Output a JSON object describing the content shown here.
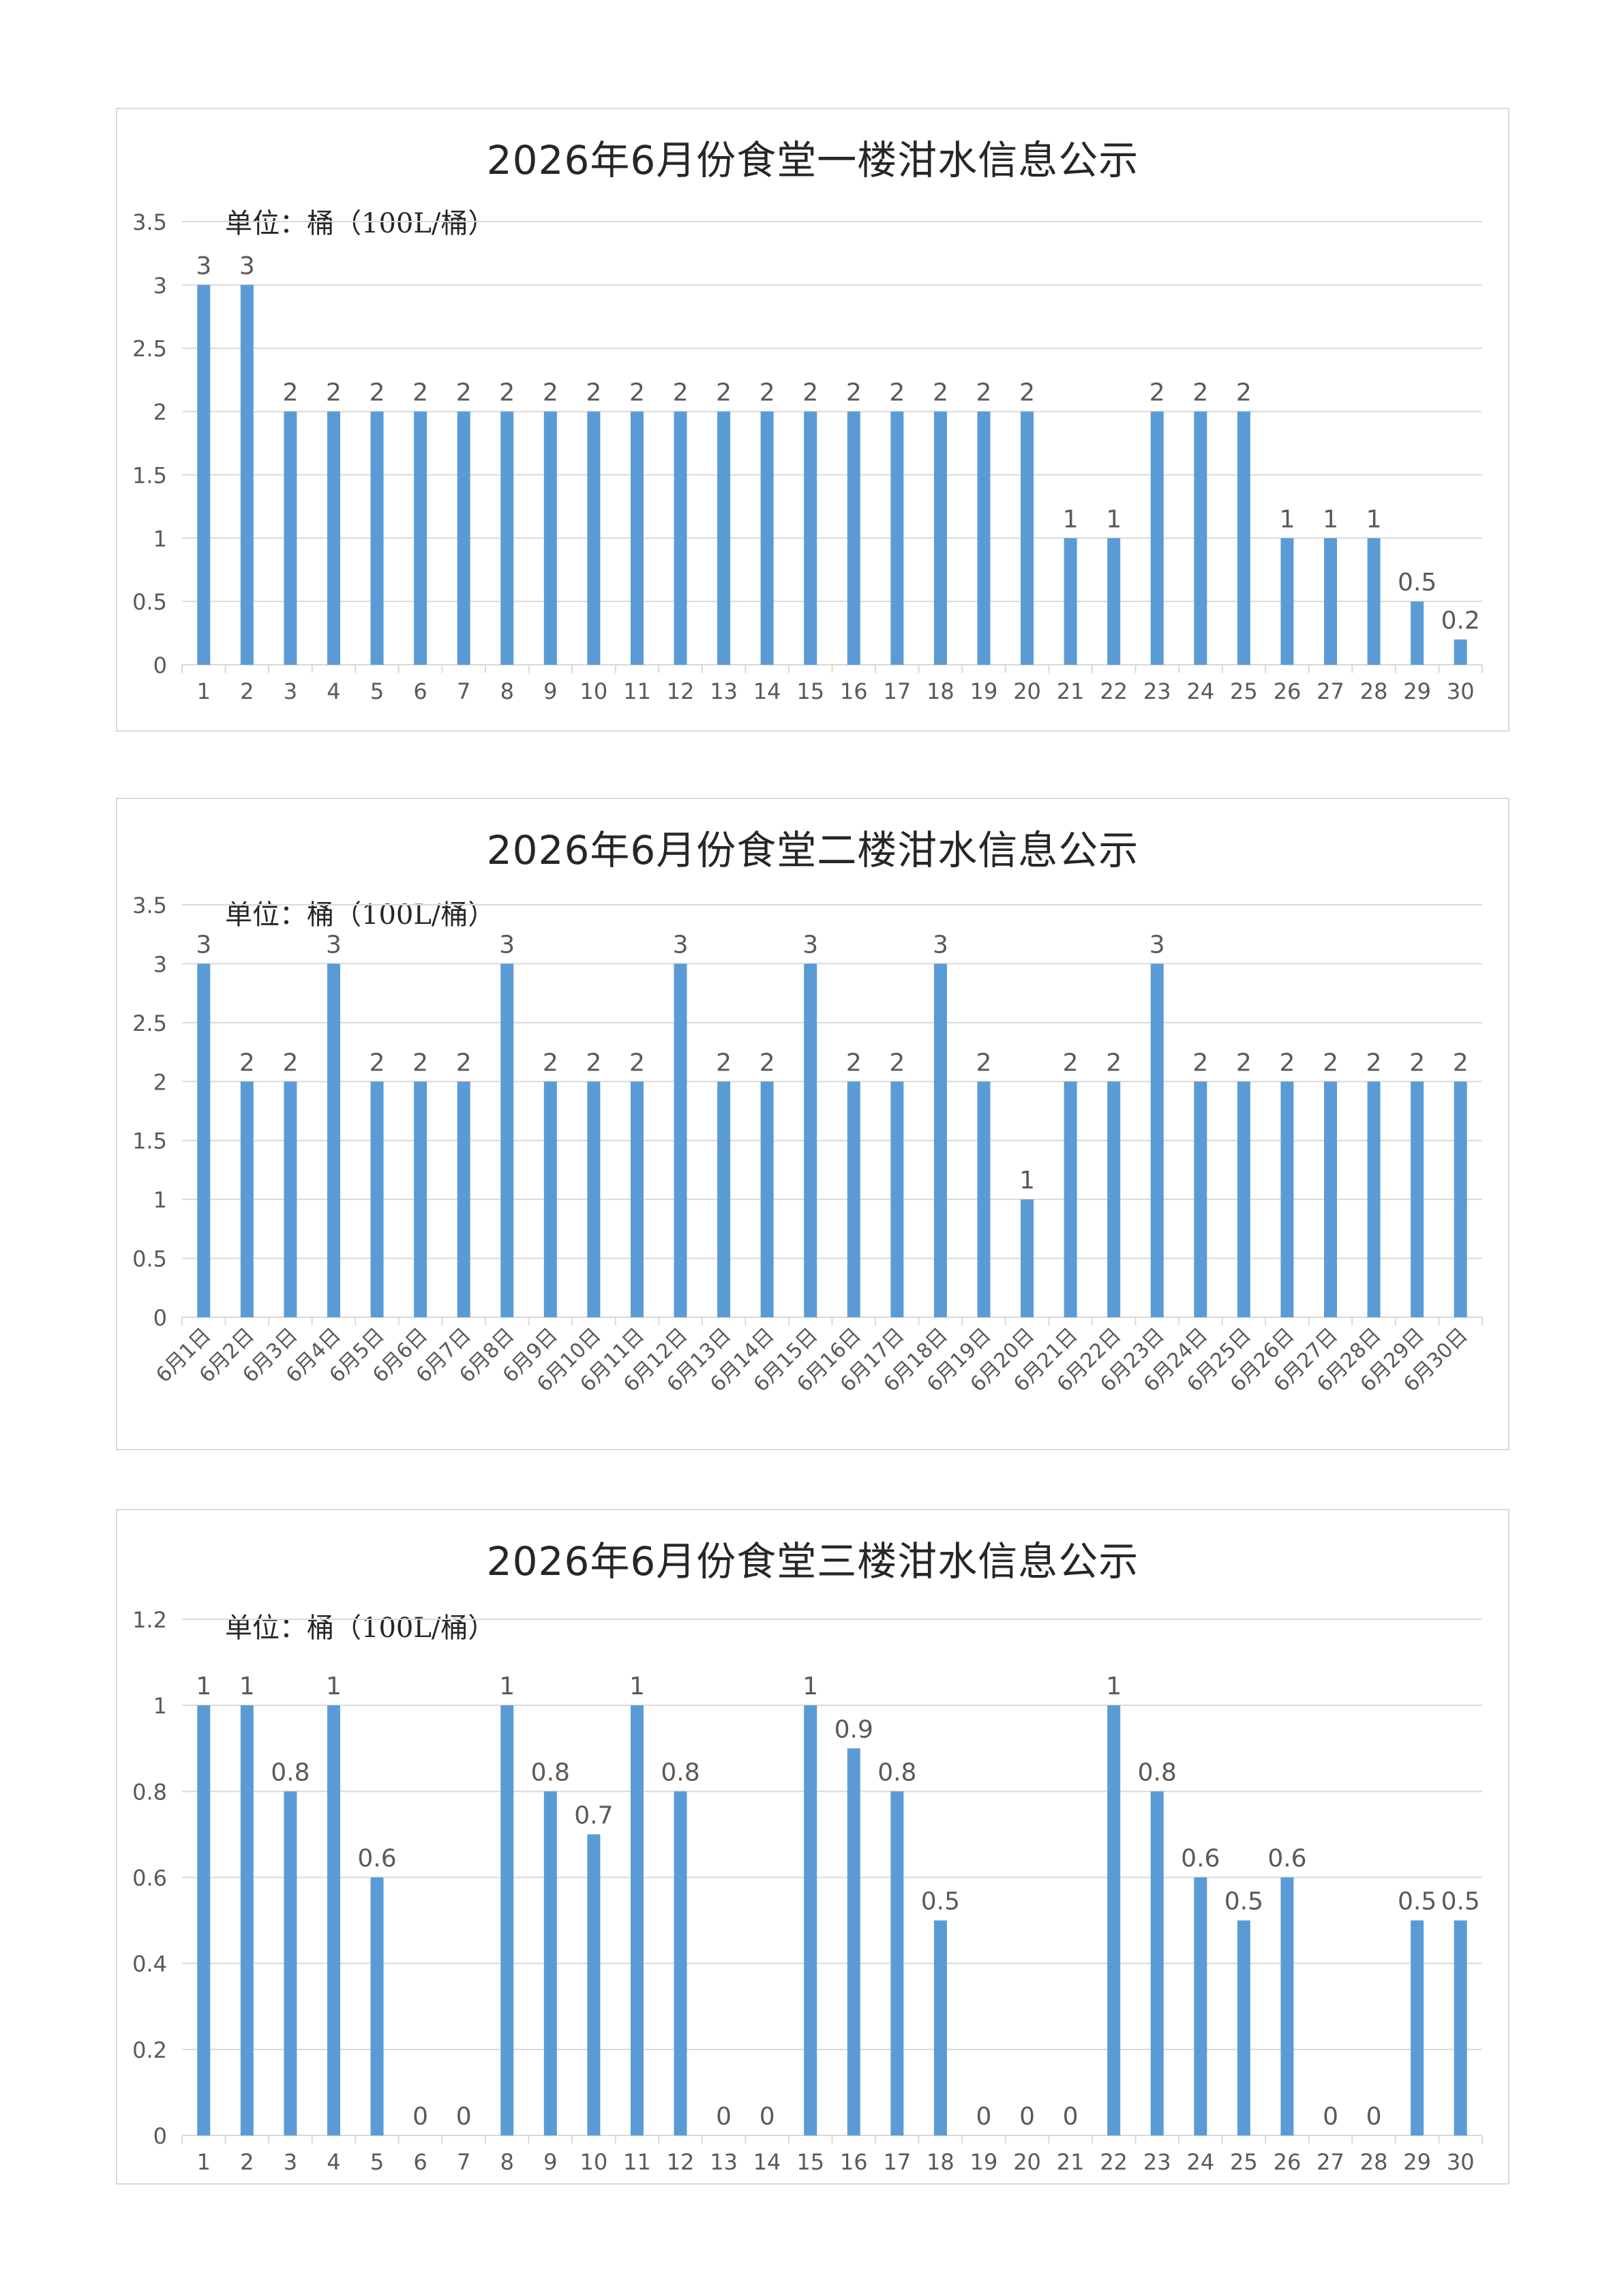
{
  "charts": [
    {
      "title": "2026年6月份食堂一楼泔水信息公示",
      "unit_label": "单位：桶（100L/桶）",
      "chart_data": {
        "type": "bar",
        "categories": [
          "1",
          "2",
          "3",
          "4",
          "5",
          "6",
          "7",
          "8",
          "9",
          "10",
          "11",
          "12",
          "13",
          "14",
          "15",
          "16",
          "17",
          "18",
          "19",
          "20",
          "21",
          "22",
          "23",
          "24",
          "25",
          "26",
          "27",
          "28",
          "29",
          "30"
        ],
        "values": [
          3,
          3,
          2,
          2,
          2,
          2,
          2,
          2,
          2,
          2,
          2,
          2,
          2,
          2,
          2,
          2,
          2,
          2,
          2,
          2,
          1,
          1,
          2,
          2,
          2,
          1,
          1,
          1,
          0.5,
          0.2
        ],
        "ylim": [
          0,
          3.5
        ],
        "yticks": [
          "0",
          "0.5",
          "1",
          "1.5",
          "2",
          "2.5",
          "3",
          "3.5"
        ],
        "grid": true,
        "bar_color": "#5b9bd5"
      }
    },
    {
      "title": "2026年6月份食堂二楼泔水信息公示",
      "unit_label": "单位：桶（100L/桶）",
      "chart_data": {
        "type": "bar",
        "categories": [
          "6月1日",
          "6月2日",
          "6月3日",
          "6月4日",
          "6月5日",
          "6月6日",
          "6月7日",
          "6月8日",
          "6月9日",
          "6月10日",
          "6月11日",
          "6月12日",
          "6月13日",
          "6月14日",
          "6月15日",
          "6月16日",
          "6月17日",
          "6月18日",
          "6月19日",
          "6月20日",
          "6月21日",
          "6月22日",
          "6月23日",
          "6月24日",
          "6月25日",
          "6月26日",
          "6月27日",
          "6月28日",
          "6月29日",
          "6月30日"
        ],
        "values": [
          3,
          2,
          2,
          3,
          2,
          2,
          2,
          3,
          2,
          2,
          2,
          3,
          2,
          2,
          3,
          2,
          2,
          3,
          2,
          1,
          2,
          2,
          3,
          2,
          2,
          2,
          2,
          2,
          2,
          2
        ],
        "ylim": [
          0,
          3.5
        ],
        "yticks": [
          "0",
          "0.5",
          "1",
          "1.5",
          "2",
          "2.5",
          "3",
          "3.5"
        ],
        "grid": true,
        "bar_color": "#5b9bd5"
      }
    },
    {
      "title": "2026年6月份食堂三楼泔水信息公示",
      "unit_label": "单位：桶（100L/桶）",
      "chart_data": {
        "type": "bar",
        "categories": [
          "1",
          "2",
          "3",
          "4",
          "5",
          "6",
          "7",
          "8",
          "9",
          "10",
          "11",
          "12",
          "13",
          "14",
          "15",
          "16",
          "17",
          "18",
          "19",
          "20",
          "21",
          "22",
          "23",
          "24",
          "25",
          "26",
          "27",
          "28",
          "29",
          "30"
        ],
        "values": [
          1,
          1,
          0.8,
          1,
          0.6,
          0,
          0,
          1,
          0.8,
          0.7,
          1,
          0.8,
          0,
          0,
          1,
          0.9,
          0.8,
          0.5,
          0,
          0,
          0,
          1,
          0.8,
          0.6,
          0.5,
          0.6,
          0,
          0,
          0.5,
          0.5
        ],
        "ylim": [
          0,
          1.2
        ],
        "yticks": [
          "0",
          "0.2",
          "0.4",
          "0.6",
          "0.8",
          "1",
          "1.2"
        ],
        "grid": true,
        "bar_color": "#5b9bd5"
      }
    }
  ]
}
